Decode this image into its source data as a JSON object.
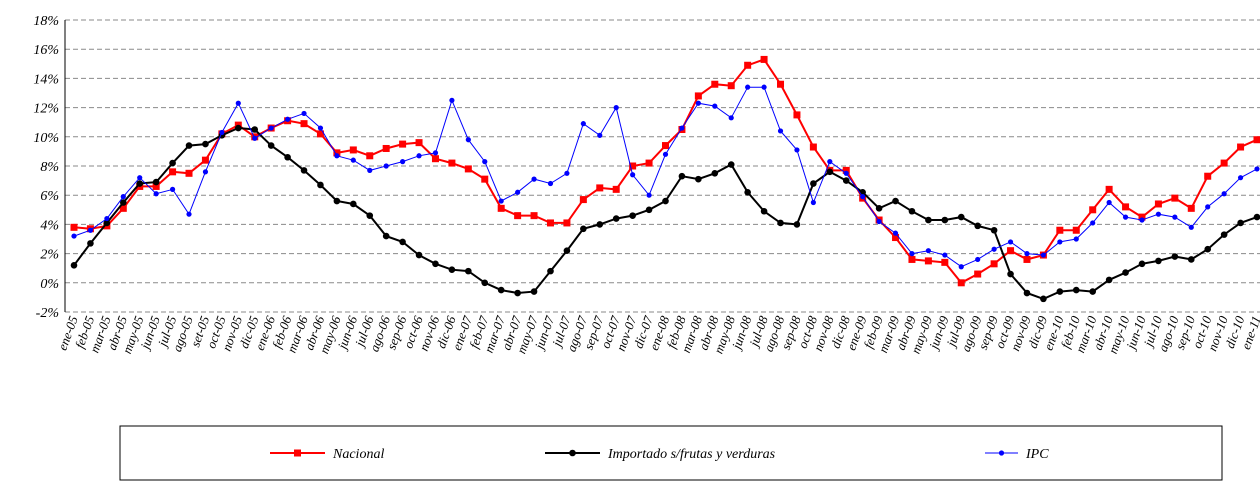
{
  "chart_data": {
    "type": "line",
    "categories": [
      "ene-05",
      "feb-05",
      "mar-05",
      "abr-05",
      "may-05",
      "jun-05",
      "jul-05",
      "ago-05",
      "set-05",
      "oct-05",
      "nov-05",
      "dic-05",
      "ene-06",
      "feb-06",
      "mar-06",
      "abr-06",
      "may-06",
      "jun-06",
      "jul-06",
      "ago-06",
      "sep-06",
      "oct-06",
      "nov-06",
      "dic-06",
      "ene-07",
      "feb-07",
      "mar-07",
      "abr-07",
      "may-07",
      "jun-07",
      "jul-07",
      "ago-07",
      "sep-07",
      "oct-07",
      "nov-07",
      "dic-07",
      "ene-08",
      "feb-08",
      "mar-08",
      "abr-08",
      "may-08",
      "jun-08",
      "jul-08",
      "ago-08",
      "sep-08",
      "oct-08",
      "nov-08",
      "dic-08",
      "ene-09",
      "feb-09",
      "mar-09",
      "abr-09",
      "may-09",
      "jun-09",
      "jul-09",
      "ago-09",
      "sep-09",
      "oct-09",
      "nov-09",
      "dic-09",
      "ene-10",
      "feb-10",
      "mar-10",
      "abr-10",
      "may-10",
      "jun-10",
      "jul-10",
      "ago-10",
      "sep-10",
      "oct-10",
      "nov-10",
      "dic-10",
      "ene-11"
    ],
    "series": [
      {
        "name": "Nacional",
        "color": "#ff0000",
        "marker": "square",
        "values": [
          3.8,
          3.7,
          3.9,
          5.1,
          6.6,
          6.6,
          7.6,
          7.5,
          8.4,
          10.2,
          10.8,
          10.0,
          10.6,
          11.1,
          10.9,
          10.2,
          8.9,
          9.1,
          8.7,
          9.2,
          9.5,
          9.6,
          8.5,
          8.2,
          7.8,
          7.1,
          5.1,
          4.6,
          4.6,
          4.1,
          4.1,
          5.7,
          6.5,
          6.4,
          8.0,
          8.2,
          9.4,
          10.5,
          12.8,
          13.6,
          13.5,
          14.9,
          15.3,
          13.6,
          11.5,
          9.3,
          7.7,
          7.7,
          5.8,
          4.3,
          3.1,
          1.6,
          1.5,
          1.4,
          0.0,
          0.6,
          1.3,
          2.2,
          1.6,
          1.9,
          3.6,
          3.6,
          5.0,
          6.4,
          5.2,
          4.5,
          5.4,
          5.8,
          5.1,
          7.3,
          8.2,
          9.3,
          9.8
        ]
      },
      {
        "name": "Importado s/frutas y verduras",
        "color": "#000000",
        "marker": "circle",
        "values": [
          1.2,
          2.7,
          4.1,
          5.5,
          6.8,
          6.9,
          8.2,
          9.4,
          9.5,
          10.1,
          10.6,
          10.5,
          9.4,
          8.6,
          7.7,
          6.7,
          5.6,
          5.4,
          4.6,
          3.2,
          2.8,
          1.9,
          1.3,
          0.9,
          0.8,
          0.0,
          -0.5,
          -0.7,
          -0.6,
          0.8,
          2.2,
          3.7,
          4.0,
          4.4,
          4.6,
          5.0,
          5.6,
          7.3,
          7.1,
          7.5,
          8.1,
          6.2,
          4.9,
          4.1,
          4.0,
          6.8,
          7.6,
          7.0,
          6.2,
          5.1,
          5.6,
          4.9,
          4.3,
          4.3,
          4.5,
          3.9,
          3.6,
          0.6,
          -0.7,
          -1.1,
          -0.6,
          -0.5,
          -0.6,
          0.2,
          0.7,
          1.3,
          1.5,
          1.8,
          1.6,
          2.3,
          3.3,
          4.1,
          4.5
        ]
      },
      {
        "name": "IPC",
        "color": "#0000ff",
        "marker": "small-circle",
        "values": [
          3.2,
          3.6,
          4.4,
          5.9,
          7.2,
          6.1,
          6.4,
          4.7,
          7.6,
          10.3,
          12.3,
          9.9,
          10.6,
          11.2,
          11.6,
          10.6,
          8.7,
          8.4,
          7.7,
          8.0,
          8.3,
          8.7,
          8.9,
          12.5,
          9.8,
          8.3,
          5.6,
          6.2,
          7.1,
          6.8,
          7.5,
          10.9,
          10.1,
          12.0,
          7.4,
          6.0,
          8.8,
          10.6,
          12.3,
          12.1,
          11.3,
          13.4,
          13.4,
          10.4,
          9.1,
          5.5,
          8.3,
          7.5,
          5.9,
          4.2,
          3.4,
          2.0,
          2.2,
          1.9,
          1.1,
          1.6,
          2.3,
          2.8,
          2.0,
          1.9,
          2.8,
          3.0,
          4.1,
          5.5,
          4.5,
          4.3,
          4.7,
          4.5,
          3.8,
          5.2,
          6.1,
          7.2,
          7.8
        ]
      }
    ],
    "ylim": [
      -2,
      18
    ],
    "yticks": [
      {
        "value": -2,
        "label": "-2%"
      },
      {
        "value": 0,
        "label": "0%"
      },
      {
        "value": 2,
        "label": "2%"
      },
      {
        "value": 4,
        "label": "4%"
      },
      {
        "value": 6,
        "label": "6%"
      },
      {
        "value": 8,
        "label": "8%"
      },
      {
        "value": 10,
        "label": "10%"
      },
      {
        "value": 12,
        "label": "12%"
      },
      {
        "value": 14,
        "label": "14%"
      },
      {
        "value": 16,
        "label": "16%"
      },
      {
        "value": 18,
        "label": "18%"
      }
    ],
    "grid": true
  }
}
